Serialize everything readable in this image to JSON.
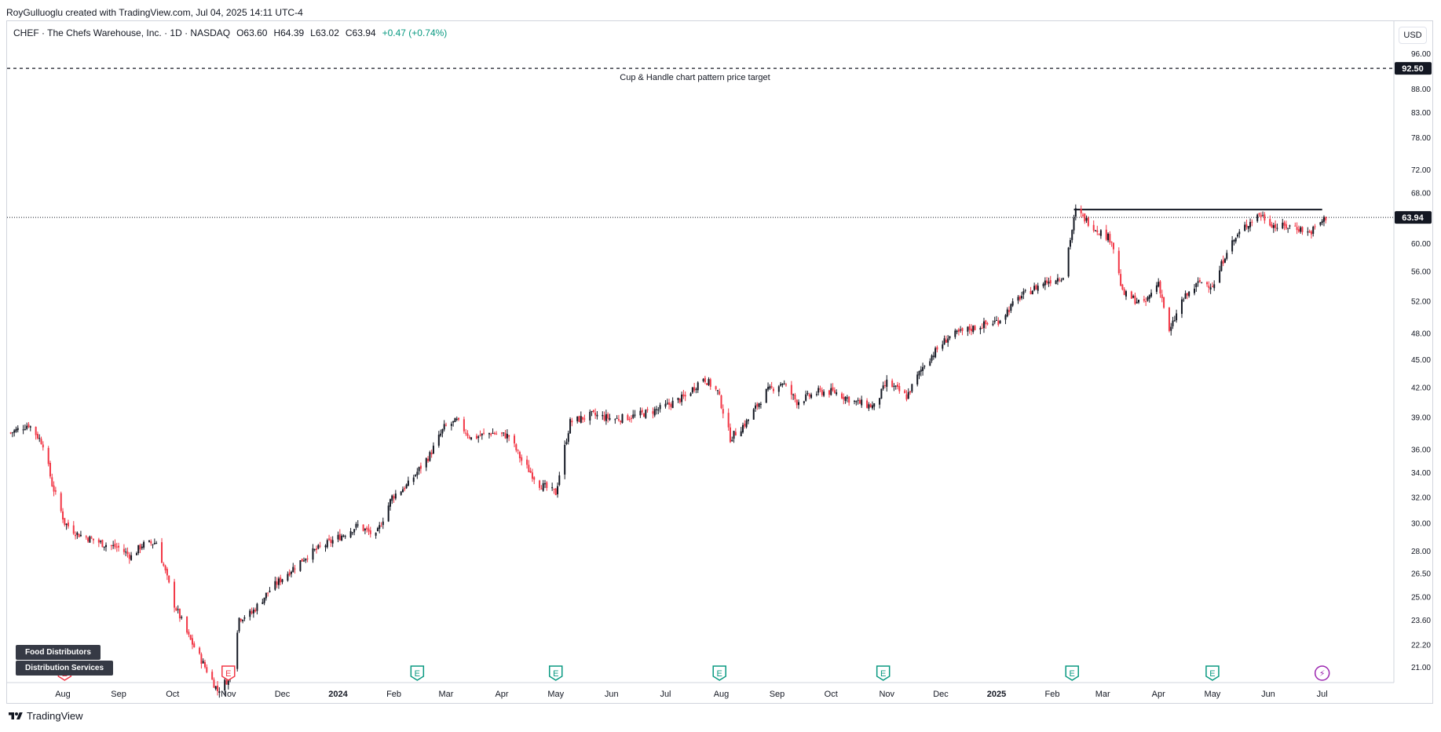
{
  "attribution": "RoyGulluoglu created with TradingView.com, Jul 04, 2025 14:11 UTC-4",
  "legend": {
    "symbol": "CHEF · The Chefs Warehouse, Inc. · 1D · NASDAQ",
    "open": "O63.60",
    "high": "H64.39",
    "low": "L63.02",
    "close": "C63.94",
    "change": "+0.47 (+0.74%)"
  },
  "currency": "USD",
  "annotation": "Cup & Handle chart pattern price target",
  "price_target_label": "92.50",
  "last_price_label": "63.94",
  "sector_tags": [
    "Food Distributors",
    "Distribution Services"
  ],
  "footer_brand": "TradingView",
  "earnings_marker_label": "E",
  "dividend_marker_label": "⚡",
  "colors": {
    "up": "#131722",
    "down": "#f23645",
    "earnings_green": "#089981",
    "earnings_red": "#f23645",
    "dividend": "#9c27b0"
  },
  "chart_data": {
    "type": "line",
    "title": "CHEF · The Chefs Warehouse, Inc. · 1D · NASDAQ",
    "scale": "log",
    "ylim": [
      20,
      100
    ],
    "y_ticks": [
      21.0,
      22.2,
      23.6,
      25.0,
      26.5,
      28.0,
      30.0,
      32.0,
      34.0,
      36.0,
      39.0,
      42.0,
      45.0,
      48.0,
      52.0,
      56.0,
      60.0,
      64.0,
      68.0,
      72.0,
      78.0,
      83.0,
      88.0,
      96.0
    ],
    "y_tick_labels": [
      "21.00",
      "22.20",
      "23.60",
      "25.00",
      "26.50",
      "28.00",
      "30.00",
      "32.00",
      "34.00",
      "36.00",
      "39.00",
      "42.00",
      "45.00",
      "48.00",
      "52.00",
      "56.00",
      "60.00",
      "64.00",
      "68.00",
      "72.00",
      "78.00",
      "83.00",
      "88.00",
      "96.00"
    ],
    "x_tick_labels": [
      "Aug",
      "Sep",
      "Oct",
      "Nov",
      "Dec",
      "2024",
      "Feb",
      "Mar",
      "Apr",
      "May",
      "Jun",
      "Jul",
      "Aug",
      "Sep",
      "Oct",
      "Nov",
      "Dec",
      "2025",
      "Feb",
      "Mar",
      "Apr",
      "May",
      "Jun",
      "Jul"
    ],
    "x_tick_bold": [
      "2024",
      "2025"
    ],
    "x_range": [
      "2023-07-01",
      "2025-07-09"
    ],
    "x_ticks": [
      "2023-08-01",
      "2023-09-01",
      "2023-10-01",
      "2023-11-01",
      "2023-12-01",
      "2024-01-01",
      "2024-02-01",
      "2024-03-01",
      "2024-04-01",
      "2024-05-01",
      "2024-06-01",
      "2024-07-01",
      "2024-08-01",
      "2024-09-01",
      "2024-10-01",
      "2024-11-01",
      "2024-12-01",
      "2025-01-01",
      "2025-02-01",
      "2025-03-01",
      "2025-04-01",
      "2025-05-01",
      "2025-06-01",
      "2025-07-01"
    ],
    "price_series": [
      {
        "date": "2023-07-03",
        "close": 37.5
      },
      {
        "date": "2023-07-13",
        "close": 38.3
      },
      {
        "date": "2023-07-21",
        "close": 36.5
      },
      {
        "date": "2023-07-26",
        "close": 33.0
      },
      {
        "date": "2023-08-02",
        "close": 30.0
      },
      {
        "date": "2023-08-09",
        "close": 29.2
      },
      {
        "date": "2023-08-23",
        "close": 28.5
      },
      {
        "date": "2023-09-01",
        "close": 28.2
      },
      {
        "date": "2023-09-08",
        "close": 27.6
      },
      {
        "date": "2023-09-14",
        "close": 28.4
      },
      {
        "date": "2023-09-22",
        "close": 28.6
      },
      {
        "date": "2023-10-02",
        "close": 24.5
      },
      {
        "date": "2023-10-10",
        "close": 22.6
      },
      {
        "date": "2023-10-19",
        "close": 21.0
      },
      {
        "date": "2023-10-26",
        "close": 19.8
      },
      {
        "date": "2023-11-02",
        "close": 20.5
      },
      {
        "date": "2023-11-07",
        "close": 23.7
      },
      {
        "date": "2023-11-14",
        "close": 24.0
      },
      {
        "date": "2023-11-24",
        "close": 25.4
      },
      {
        "date": "2023-12-04",
        "close": 26.5
      },
      {
        "date": "2023-12-15",
        "close": 27.7
      },
      {
        "date": "2024-01-02",
        "close": 29.0
      },
      {
        "date": "2024-01-12",
        "close": 29.8
      },
      {
        "date": "2024-01-22",
        "close": 29.0
      },
      {
        "date": "2024-01-31",
        "close": 32.0
      },
      {
        "date": "2024-02-09",
        "close": 33.0
      },
      {
        "date": "2024-02-21",
        "close": 35.5
      },
      {
        "date": "2024-02-29",
        "close": 38.0
      },
      {
        "date": "2024-03-07",
        "close": 38.6
      },
      {
        "date": "2024-03-15",
        "close": 37.0
      },
      {
        "date": "2024-03-26",
        "close": 37.5
      },
      {
        "date": "2024-04-05",
        "close": 37.2
      },
      {
        "date": "2024-04-12",
        "close": 35.0
      },
      {
        "date": "2024-04-22",
        "close": 33.0
      },
      {
        "date": "2024-05-01",
        "close": 32.3
      },
      {
        "date": "2024-05-09",
        "close": 38.5
      },
      {
        "date": "2024-05-21",
        "close": 39.2
      },
      {
        "date": "2024-06-03",
        "close": 38.8
      },
      {
        "date": "2024-06-14",
        "close": 39.1
      },
      {
        "date": "2024-06-28",
        "close": 39.8
      },
      {
        "date": "2024-07-12",
        "close": 41.0
      },
      {
        "date": "2024-07-22",
        "close": 43.0
      },
      {
        "date": "2024-07-30",
        "close": 41.5
      },
      {
        "date": "2024-08-06",
        "close": 37.0
      },
      {
        "date": "2024-08-15",
        "close": 38.5
      },
      {
        "date": "2024-08-26",
        "close": 41.5
      },
      {
        "date": "2024-09-04",
        "close": 42.5
      },
      {
        "date": "2024-09-12",
        "close": 40.5
      },
      {
        "date": "2024-09-24",
        "close": 41.5
      },
      {
        "date": "2024-10-03",
        "close": 41.5
      },
      {
        "date": "2024-10-14",
        "close": 40.5
      },
      {
        "date": "2024-10-25",
        "close": 40.0
      },
      {
        "date": "2024-11-01",
        "close": 42.5
      },
      {
        "date": "2024-11-12",
        "close": 41.0
      },
      {
        "date": "2024-11-22",
        "close": 44.5
      },
      {
        "date": "2024-12-05",
        "close": 47.5
      },
      {
        "date": "2024-12-17",
        "close": 48.5
      },
      {
        "date": "2025-01-02",
        "close": 49.5
      },
      {
        "date": "2025-01-14",
        "close": 52.5
      },
      {
        "date": "2025-01-28",
        "close": 54.5
      },
      {
        "date": "2025-02-07",
        "close": 55.3
      },
      {
        "date": "2025-02-12",
        "close": 62.0
      },
      {
        "date": "2025-02-14",
        "close": 65.0
      },
      {
        "date": "2025-02-26",
        "close": 62.0
      },
      {
        "date": "2025-03-06",
        "close": 60.5
      },
      {
        "date": "2025-03-12",
        "close": 53.0
      },
      {
        "date": "2025-03-24",
        "close": 51.5
      },
      {
        "date": "2025-04-01",
        "close": 54.5
      },
      {
        "date": "2025-04-07",
        "close": 48.0
      },
      {
        "date": "2025-04-14",
        "close": 52.0
      },
      {
        "date": "2025-04-24",
        "close": 54.5
      },
      {
        "date": "2025-05-02",
        "close": 54.0
      },
      {
        "date": "2025-05-09",
        "close": 59.0
      },
      {
        "date": "2025-05-19",
        "close": 62.5
      },
      {
        "date": "2025-05-27",
        "close": 64.5
      },
      {
        "date": "2025-06-05",
        "close": 62.5
      },
      {
        "date": "2025-06-16",
        "close": 62.5
      },
      {
        "date": "2025-06-24",
        "close": 61.5
      },
      {
        "date": "2025-07-03",
        "close": 63.94
      }
    ],
    "hlines": [
      {
        "name": "price_target",
        "value": 92.5,
        "style": "dashed"
      },
      {
        "name": "last_price",
        "value": 63.94,
        "style": "dotted"
      }
    ],
    "resistance_line": {
      "from": "2025-02-13",
      "to": "2025-07-01",
      "value": 65.2
    },
    "earnings_events": [
      {
        "date": "2023-08-02",
        "color": "red"
      },
      {
        "date": "2023-11-01",
        "color": "red"
      },
      {
        "date": "2024-02-14",
        "color": "green"
      },
      {
        "date": "2024-05-01",
        "color": "green"
      },
      {
        "date": "2024-07-31",
        "color": "green"
      },
      {
        "date": "2024-10-30",
        "color": "green"
      },
      {
        "date": "2025-02-12",
        "color": "green"
      },
      {
        "date": "2025-05-01",
        "color": "green"
      }
    ],
    "dividend_events": [
      {
        "date": "2025-07-01"
      }
    ]
  }
}
